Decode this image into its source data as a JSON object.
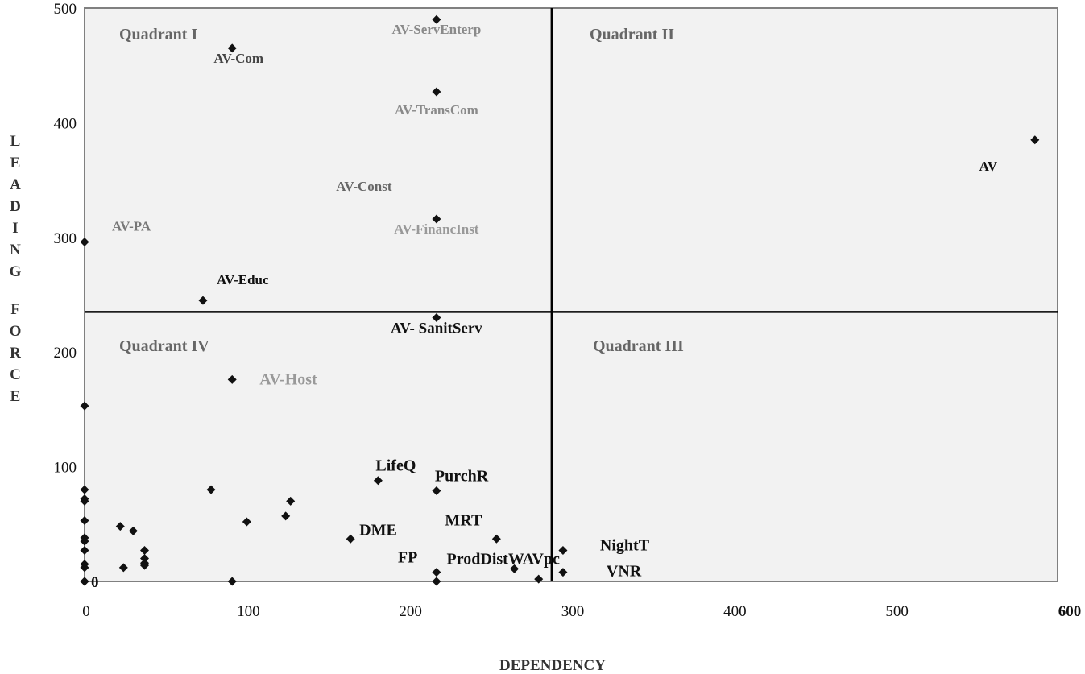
{
  "chart_data": {
    "type": "scatter",
    "xlabel": "DEPENDENCY",
    "ylabel": "LEADING FORCE",
    "xlim": [
      0,
      600
    ],
    "ylim": [
      0,
      500
    ],
    "x_ticks": [
      "0",
      "100",
      "200",
      "300",
      "400",
      "500",
      "600"
    ],
    "y_ticks": [
      "100",
      "200",
      "300",
      "400",
      "500"
    ],
    "grid": false,
    "divider_lines": {
      "x": 288,
      "y": 235
    },
    "quadrants": [
      {
        "label": "Quadrant I",
        "color": "#666666"
      },
      {
        "label": "Quadrant II",
        "color": "#666666"
      },
      {
        "label": "Quadrant III",
        "color": "#666666"
      },
      {
        "label": "Quadrant IV",
        "color": "#666666"
      }
    ],
    "points": [
      {
        "label": "AV-ServEnterp",
        "x": 217,
        "y": 490,
        "color": "#8a8a8a"
      },
      {
        "label": "AV-Com",
        "x": 91,
        "y": 465,
        "color": "#444444"
      },
      {
        "label": "AV-TransCom",
        "x": 217,
        "y": 427,
        "color": "#8a8a8a"
      },
      {
        "label": "AV",
        "x": 586,
        "y": 385,
        "color": "#111111"
      },
      {
        "label": "AV-Const",
        "x": 217,
        "y": 318,
        "color": "#666666"
      },
      {
        "label": "AV-FinancInst",
        "x": 217,
        "y": 316,
        "color": "#999999"
      },
      {
        "label": "AV-PA",
        "x": 0,
        "y": 296,
        "color": "#777777"
      },
      {
        "label": "AV-Educ",
        "x": 73,
        "y": 245,
        "color": "#111111"
      },
      {
        "label": "AV- SanitServ",
        "x": 217,
        "y": 230,
        "color": "#111111"
      },
      {
        "label": "AV-Host",
        "x": 91,
        "y": 176,
        "color": "#999999"
      },
      {
        "label": "LifeQ",
        "x": 181,
        "y": 88,
        "color": "#111111"
      },
      {
        "label": "PurchR",
        "x": 217,
        "y": 79,
        "color": "#111111"
      },
      {
        "label": "MRT",
        "x": 254,
        "y": 37,
        "color": "#111111"
      },
      {
        "label": "DME",
        "x": 164,
        "y": 37,
        "color": "#111111"
      },
      {
        "label": "NightT",
        "x": 295,
        "y": 27,
        "color": "#111111"
      },
      {
        "label": "ProdDistWAVpc",
        "x": 265,
        "y": 11,
        "color": "#111111"
      },
      {
        "label": "FP",
        "x": 217,
        "y": 8,
        "color": "#111111"
      },
      {
        "label": "VNR",
        "x": 295,
        "y": 8,
        "color": "#111111"
      },
      {
        "label": "0",
        "x": 0,
        "y": 0,
        "color": "#111111"
      }
    ],
    "unlabeled_points": [
      [
        0,
        153
      ],
      [
        0,
        80
      ],
      [
        0,
        72
      ],
      [
        0,
        70
      ],
      [
        0,
        53
      ],
      [
        0,
        38
      ],
      [
        0,
        35
      ],
      [
        0,
        27
      ],
      [
        0,
        15
      ],
      [
        0,
        12
      ],
      [
        0,
        0
      ],
      [
        22,
        48
      ],
      [
        30,
        44
      ],
      [
        24,
        12
      ],
      [
        37,
        27
      ],
      [
        37,
        20
      ],
      [
        37,
        16
      ],
      [
        37,
        14
      ],
      [
        78,
        80
      ],
      [
        91,
        0
      ],
      [
        100,
        52
      ],
      [
        124,
        57
      ],
      [
        127,
        70
      ],
      [
        217,
        0
      ],
      [
        280,
        2
      ]
    ]
  }
}
